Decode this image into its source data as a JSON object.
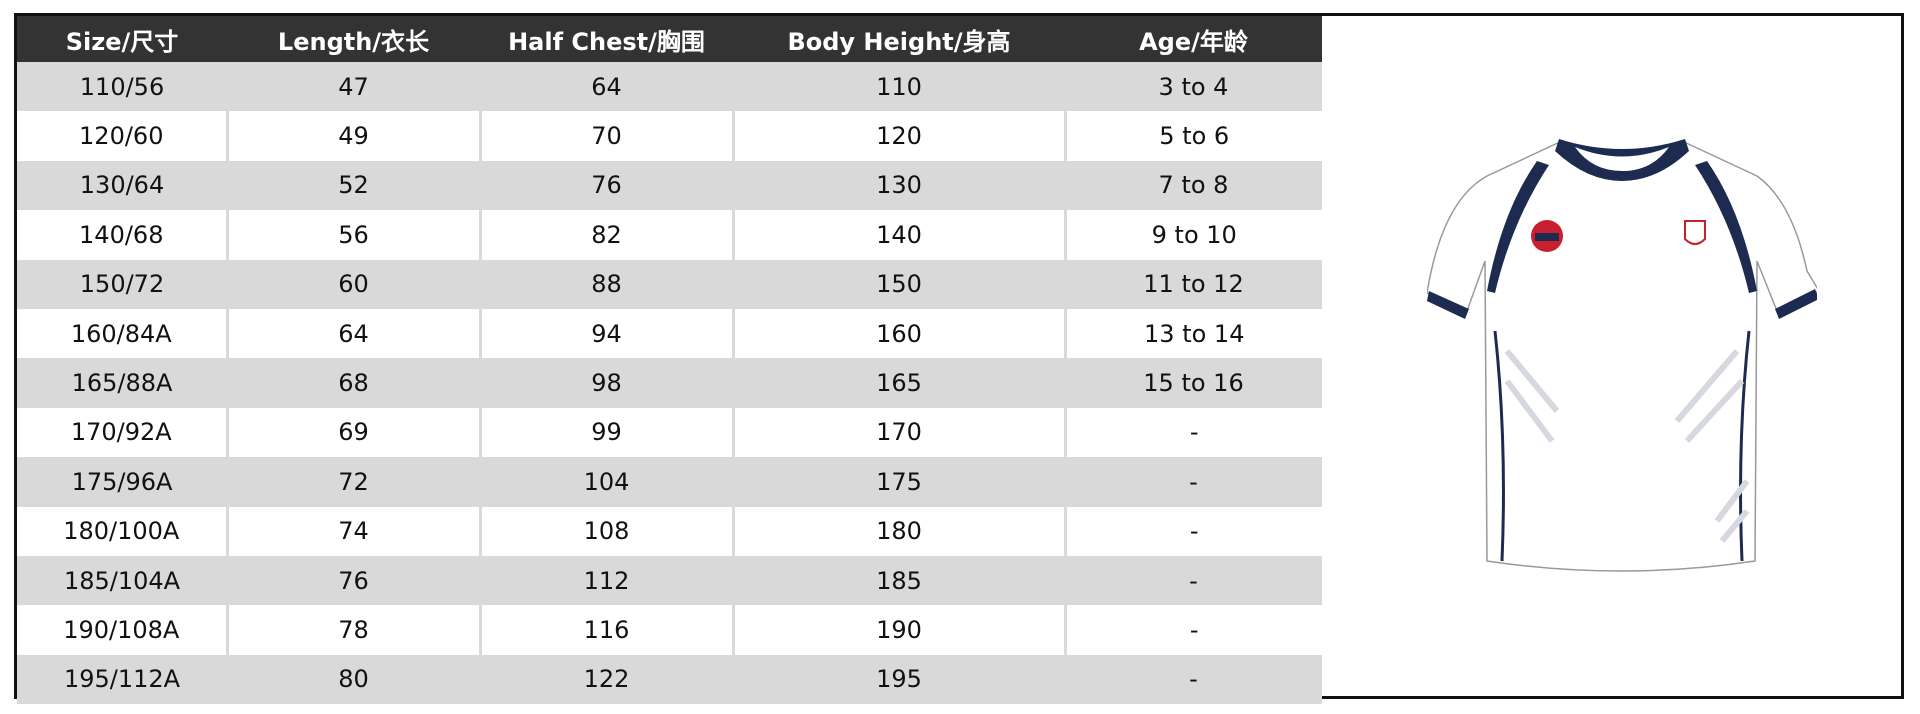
{
  "table": {
    "headers": [
      "Size/尺寸",
      "Length/衣长",
      "Half Chest/胸围",
      "Body Height/身高",
      "Age/年龄"
    ],
    "rows": [
      [
        "110/56",
        "47",
        "64",
        "110",
        "3 to 4"
      ],
      [
        "120/60",
        "49",
        "70",
        "120",
        "5 to 6"
      ],
      [
        "130/64",
        "52",
        "76",
        "130",
        "7 to 8"
      ],
      [
        "140/68",
        "56",
        "82",
        "140",
        "9 to 10"
      ],
      [
        "150/72",
        "60",
        "88",
        "150",
        "11 to 12"
      ],
      [
        "160/84A",
        "64",
        "94",
        "160",
        "13 to 14"
      ],
      [
        "165/88A",
        "68",
        "98",
        "165",
        "15 to 16"
      ],
      [
        "170/92A",
        "69",
        "99",
        "170",
        "-"
      ],
      [
        "175/96A",
        "72",
        "104",
        "175",
        "-"
      ],
      [
        "180/100A",
        "74",
        "108",
        "180",
        "-"
      ],
      [
        "185/104A",
        "76",
        "112",
        "185",
        "-"
      ],
      [
        "190/108A",
        "78",
        "116",
        "190",
        "-"
      ],
      [
        "195/112A",
        "80",
        "122",
        "195",
        "-"
      ]
    ]
  }
}
